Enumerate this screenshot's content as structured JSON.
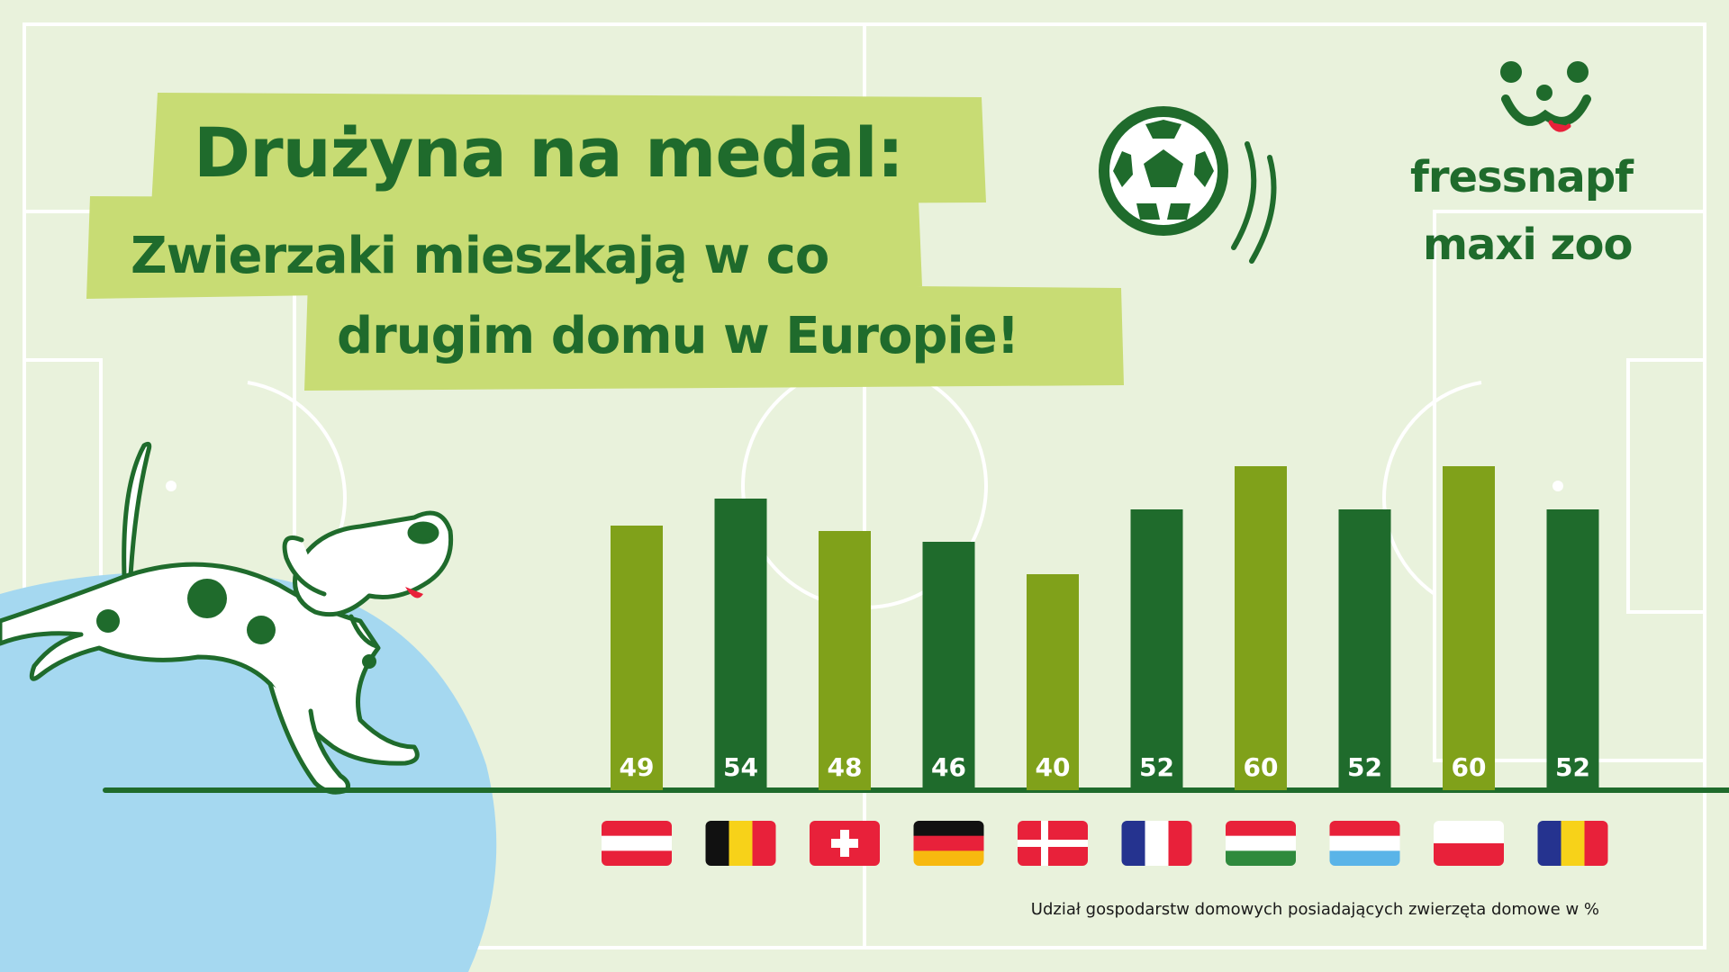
{
  "title": {
    "line1": "Drużyna na medal:",
    "line2": "Zwierzaki mieszkają w co",
    "line3": "drugim domu w Europie!"
  },
  "logo": {
    "line1": "fressnapf",
    "line2": "maxi zoo"
  },
  "footnote": "Udział gospodarstw domowych posiadających zwierzęta domowe w %",
  "colors": {
    "background": "#e9f2dc",
    "dark_green": "#1f6b2c",
    "light_green": "#80a11a",
    "highlight": "#c8dc74",
    "blue_blob": "#a5d8f0"
  },
  "chart_data": {
    "type": "bar",
    "categories": [
      "Austria",
      "Belgia",
      "Szwajcaria",
      "Niemcy",
      "Dania",
      "Francja",
      "Węgry",
      "Luksemburg",
      "Polska",
      "Rumunia"
    ],
    "values": [
      49,
      54,
      48,
      46,
      40,
      52,
      60,
      52,
      60,
      52
    ],
    "data_labels": [
      "49",
      "54",
      "48",
      "46",
      "40",
      "52",
      "60",
      "52",
      "60",
      "52"
    ],
    "bar_colors": [
      "#80a11a",
      "#1f6b2c",
      "#80a11a",
      "#1f6b2c",
      "#80a11a",
      "#1f6b2c",
      "#80a11a",
      "#1f6b2c",
      "#80a11a",
      "#1f6b2c"
    ],
    "flags": [
      {
        "type": "h",
        "colors": [
          "#e8213a",
          "#ffffff",
          "#e8213a"
        ]
      },
      {
        "type": "v",
        "colors": [
          "#111111",
          "#f7d219",
          "#e8213a"
        ]
      },
      {
        "type": "swiss",
        "colors": [
          "#e8213a",
          "#ffffff"
        ]
      },
      {
        "type": "h",
        "colors": [
          "#111111",
          "#e8213a",
          "#f7b90f"
        ]
      },
      {
        "type": "nordic",
        "colors": [
          "#e8213a",
          "#ffffff"
        ]
      },
      {
        "type": "v",
        "colors": [
          "#25338f",
          "#ffffff",
          "#e8213a"
        ]
      },
      {
        "type": "h",
        "colors": [
          "#e8213a",
          "#ffffff",
          "#2f8a3d"
        ]
      },
      {
        "type": "h",
        "colors": [
          "#e8213a",
          "#ffffff",
          "#5ab4e8"
        ]
      },
      {
        "type": "h",
        "colors": [
          "#ffffff",
          "#e8213a"
        ]
      },
      {
        "type": "v",
        "colors": [
          "#25338f",
          "#f7d219",
          "#e8213a"
        ]
      }
    ],
    "ylim": [
      0,
      60
    ]
  }
}
